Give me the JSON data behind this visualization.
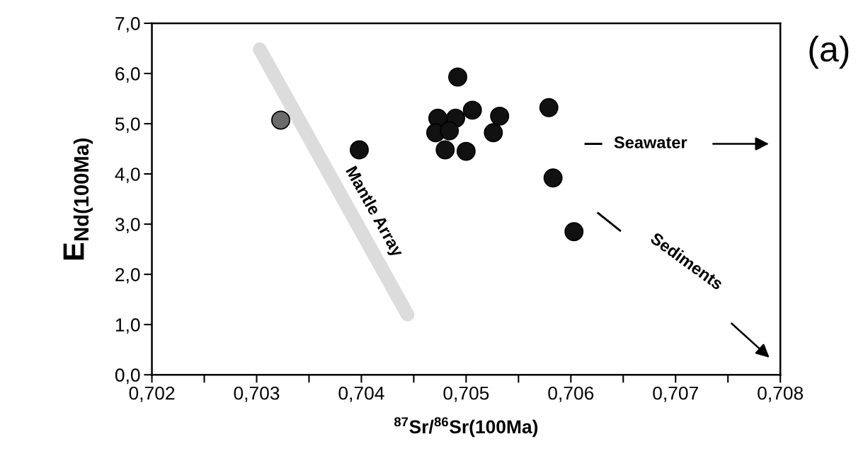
{
  "chart_data": {
    "type": "scatter",
    "xlabel": "$^{87}$Sr/$^{86}$Sr(100Ma)",
    "ylabel": "E$_{Nd(100Ma)}$",
    "series": [
      {
        "marker": "circle",
        "x": [
          0.70323,
          0.70398,
          0.70492,
          0.70506,
          0.70532,
          0.70579,
          0.70473,
          0.7049,
          0.70471,
          0.70484,
          0.70526,
          0.7048,
          0.705,
          0.70583,
          0.70603
        ],
        "values": [
          5.07,
          4.48,
          5.93,
          5.27,
          5.15,
          5.32,
          5.11,
          5.11,
          4.82,
          4.86,
          4.82,
          4.48,
          4.45,
          3.92,
          2.85
        ],
        "colors": [
          "#6b6b6b",
          "#111111",
          "#111111",
          "#111111",
          "#111111",
          "#111111",
          "#111111",
          "#111111",
          "#111111",
          "#111111",
          "#111111",
          "#111111",
          "#111111",
          "#111111",
          "#111111"
        ]
      },
      {
        "type": "line",
        "name": "Mantle Array",
        "color": "#dcdcdc",
        "x": [
          0.70303,
          0.70444
        ],
        "values": [
          6.48,
          1.2
        ]
      }
    ],
    "annotations": [
      "Seawater",
      "Sediments",
      "(a)"
    ],
    "legend": false,
    "grid": false,
    "xlim": [
      0.702,
      0.708
    ],
    "ylim": [
      0.0,
      7.0
    ],
    "xticks": [
      {
        "value": 0.702,
        "label": "0,702"
      },
      {
        "value": 0.7025,
        "label": null
      },
      {
        "value": 0.703,
        "label": "0,703"
      },
      {
        "value": 0.7035,
        "label": null
      },
      {
        "value": 0.704,
        "label": "0,704"
      },
      {
        "value": 0.7045,
        "label": null
      },
      {
        "value": 0.705,
        "label": "0,705"
      },
      {
        "value": 0.7055,
        "label": null
      },
      {
        "value": 0.706,
        "label": "0,706"
      },
      {
        "value": 0.7065,
        "label": null
      },
      {
        "value": 0.707,
        "label": "0,707"
      },
      {
        "value": 0.7075,
        "label": null
      },
      {
        "value": 0.708,
        "label": "0,708"
      }
    ],
    "yticks": [
      {
        "value": 0,
        "label": "0,0"
      },
      {
        "value": 1,
        "label": "1,0"
      },
      {
        "value": 2,
        "label": "2,0"
      },
      {
        "value": 3,
        "label": "3,0"
      },
      {
        "value": 4,
        "label": "4,0"
      },
      {
        "value": 5,
        "label": "5,0"
      },
      {
        "value": 6,
        "label": "6,0"
      },
      {
        "value": 7,
        "label": "7,0"
      }
    ]
  }
}
